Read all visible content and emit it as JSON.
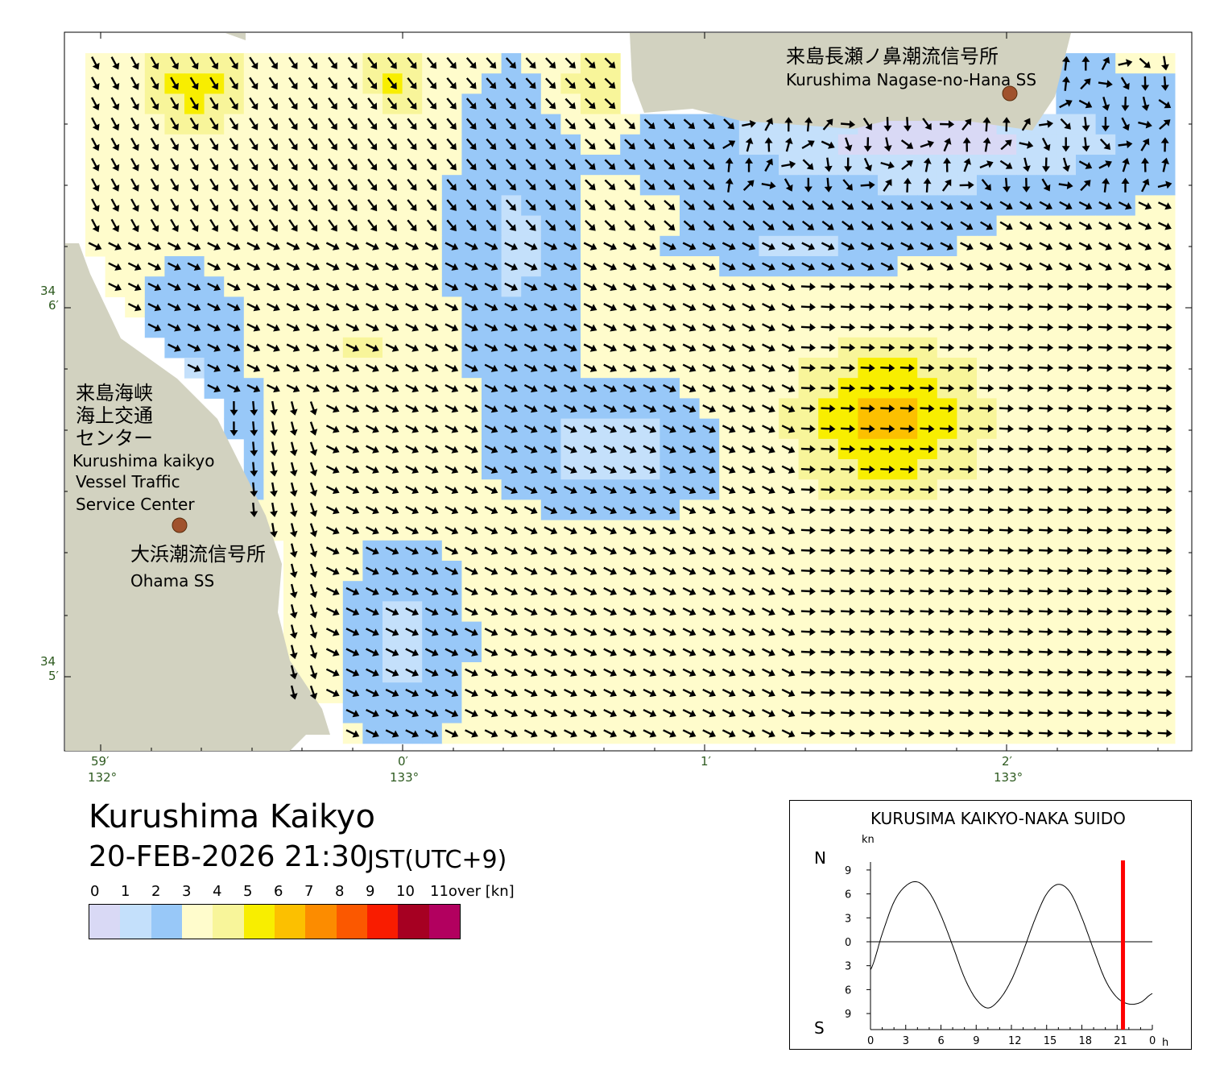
{
  "title": "Kurushima Kaikyo",
  "datetime": "20-FEB-2026 21:30",
  "timezone": "JST(UTC+9)",
  "places": [
    {
      "id": "nagase-jp",
      "text": "来島長瀬ノ鼻潮流信号所"
    },
    {
      "id": "nagase-en",
      "text": "Kurushima Nagase-no-Hana SS"
    },
    {
      "id": "vts-jp-1",
      "text": "来島海峡"
    },
    {
      "id": "vts-jp-2",
      "text": "海上交通"
    },
    {
      "id": "vts-jp-3",
      "text": "センター"
    },
    {
      "id": "vts-en-1",
      "text": "Kurushima kaikyo"
    },
    {
      "id": "vts-en-2",
      "text": "Vessel Traffic"
    },
    {
      "id": "vts-en-3",
      "text": "Service Center"
    },
    {
      "id": "ohama-jp",
      "text": "大浜潮流信号所"
    },
    {
      "id": "ohama-en",
      "text": "Ohama SS"
    }
  ],
  "coords": {
    "lat_top_deg": "34",
    "lat_top_min": "6′",
    "lat_bot_deg": "34",
    "lat_bot_min": "5′",
    "lon_labels": [
      {
        "min": "59′",
        "deg": "132°"
      },
      {
        "min": "0′",
        "deg": "133°"
      },
      {
        "min": "1′",
        "deg": ""
      },
      {
        "min": "2′",
        "deg": "133°"
      }
    ]
  },
  "legend": {
    "labels": [
      "0",
      "1",
      "2",
      "3",
      "4",
      "5",
      "6",
      "7",
      "8",
      "9",
      "10",
      "11over [kn]"
    ],
    "colors": [
      "#d9d9f5",
      "#c4e0fb",
      "#98c8f8",
      "#fffccc",
      "#f8f59a",
      "#f8ee00",
      "#fcc000",
      "#fc8c00",
      "#fb5800",
      "#f91c00",
      "#a60022",
      "#b2005f"
    ]
  },
  "colors": {
    "land": "#d2d2c0",
    "water_low": "#d9d9f5",
    "station": "#a0522d",
    "tide_marker": "#ff0000"
  },
  "tide": {
    "title": "KURUSIMA KAIKYO-NAKA SUIDO",
    "unit": "kn",
    "north": "N",
    "south": "S",
    "y_ticks": [
      "9",
      "6",
      "3",
      "0",
      "3",
      "6",
      "9"
    ],
    "x_ticks": [
      "0",
      "3",
      "6",
      "9",
      "12",
      "15",
      "18",
      "21",
      "0"
    ],
    "x_unit": "h",
    "current_hour": 21.5,
    "chart_data": {
      "type": "line",
      "x": [
        0,
        1,
        2,
        3,
        4,
        5,
        6,
        7,
        8,
        9,
        10,
        11,
        12,
        13,
        14,
        15,
        16,
        17,
        18,
        19,
        20,
        21,
        22,
        23,
        24
      ],
      "values": [
        -3.5,
        1,
        5,
        7,
        7.5,
        6.2,
        3.3,
        -0.5,
        -4.5,
        -7.2,
        -8.3,
        -7.2,
        -4.8,
        -1.2,
        2.8,
        6,
        7.2,
        6.2,
        3,
        -1,
        -4.8,
        -7,
        -7.8,
        -7.6,
        -6.5
      ],
      "ylim": [
        -10,
        10
      ],
      "xlim": [
        0,
        24
      ]
    }
  }
}
